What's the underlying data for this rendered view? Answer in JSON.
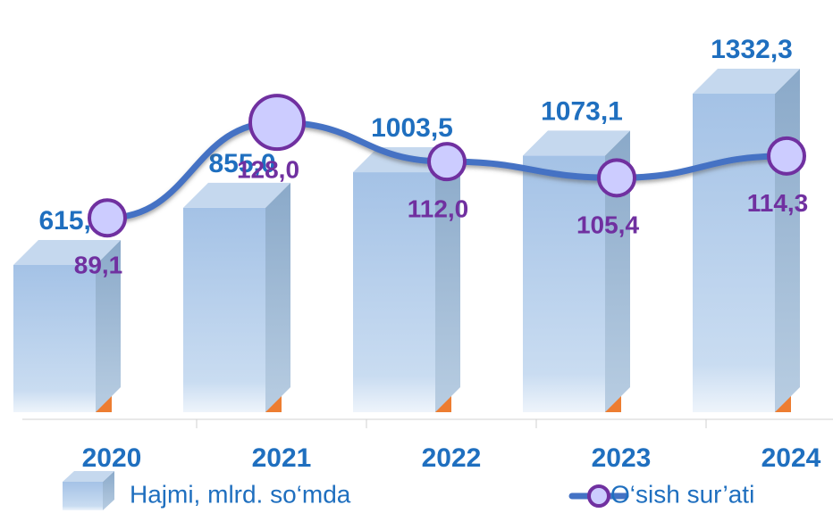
{
  "chart_data": {
    "type": "bar_line",
    "categories": [
      "2020",
      "2021",
      "2022",
      "2023",
      "2024"
    ],
    "series": [
      {
        "name": "Hajmi, mlrd. so‘mda",
        "type": "bar",
        "color": "#a9c8e8",
        "values": [
          615.7,
          855.0,
          1003.5,
          1073.1,
          1332.3
        ],
        "value_labels": [
          "615,7",
          "855,0",
          "1003,5",
          "1073,1",
          "1332,3"
        ]
      },
      {
        "name": "O‘sish sur’ati",
        "type": "line",
        "axis": "y2",
        "color": "#4472c4",
        "marker_color": "#7030a0",
        "values": [
          89.1,
          128.0,
          112.0,
          105.4,
          114.3
        ],
        "value_labels": [
          "89,1",
          "128,0",
          "112,0",
          "105,4",
          "114,3"
        ]
      }
    ],
    "ylim": [
      0,
      1500
    ],
    "y2lim": [
      10,
      156
    ]
  }
}
